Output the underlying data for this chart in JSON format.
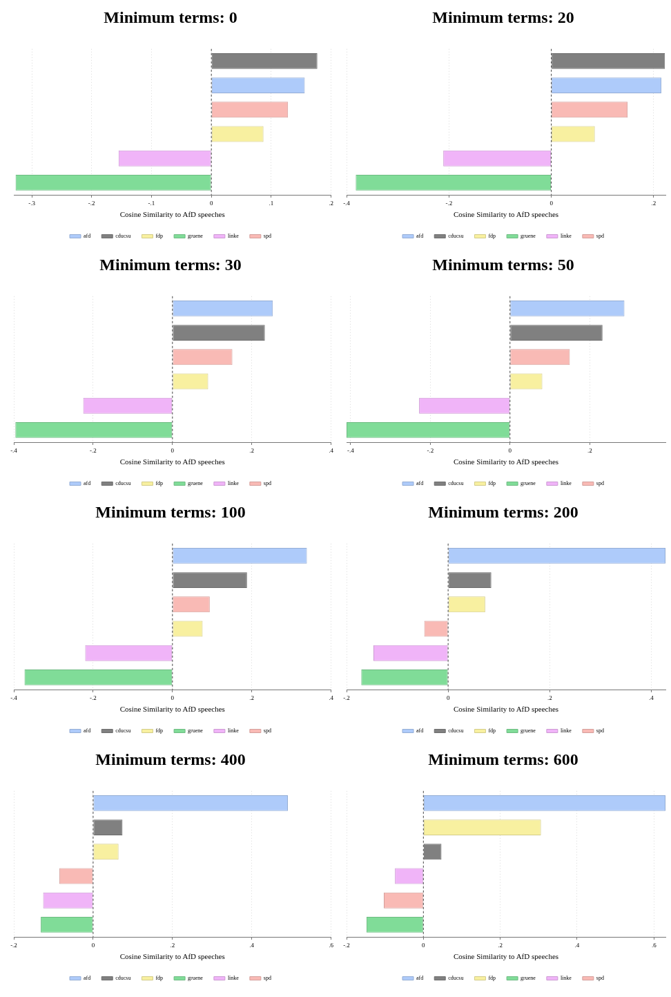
{
  "chart_data": [
    {
      "type": "bar",
      "title": "Minimum terms: 0",
      "xlabel": "Cosine Similarity to AfD speeches",
      "orientation": "horizontal",
      "stacked": true,
      "categories": [
        null,
        null,
        null,
        null,
        null,
        null
      ],
      "xlim": [
        -0.33,
        0.2
      ],
      "xticks": [
        {
          "value": -0.3,
          "label": "-.3"
        },
        {
          "value": -0.2,
          "label": "-.2"
        },
        {
          "value": -0.1,
          "label": "-.1"
        },
        {
          "value": 0,
          "label": "0"
        },
        {
          "value": 0.1,
          "label": ".1"
        },
        {
          "value": 0.2,
          "label": ".2"
        }
      ],
      "grid": "x",
      "legend": "bottom",
      "tick_labels": "x",
      "ref_lines": [
        {
          "axis": "x",
          "value": 0,
          "line_style": "dashed"
        }
      ],
      "series": [
        {
          "name": "afd",
          "color": "#aecbfa",
          "values": [
            null,
            0.156,
            null,
            null,
            null,
            null
          ]
        },
        {
          "name": "cducsu",
          "color": "#808080",
          "values": [
            0.177,
            null,
            null,
            null,
            null,
            null
          ]
        },
        {
          "name": "fdp",
          "color": "#f8f0a0",
          "values": [
            null,
            null,
            null,
            0.087,
            null,
            null
          ]
        },
        {
          "name": "gruene",
          "color": "#80dc98",
          "values": [
            null,
            null,
            null,
            null,
            null,
            -0.327
          ]
        },
        {
          "name": "linke",
          "color": "#f0b4f8",
          "values": [
            null,
            null,
            null,
            null,
            -0.155,
            null
          ]
        },
        {
          "name": "spd",
          "color": "#f9bab5",
          "values": [
            null,
            null,
            0.128,
            null,
            null,
            null
          ]
        }
      ]
    },
    {
      "type": "bar",
      "title": "Minimum terms: 20",
      "xlabel": "Cosine Similarity to AfD speeches",
      "orientation": "horizontal",
      "stacked": true,
      "categories": [
        null,
        null,
        null,
        null,
        null,
        null
      ],
      "xlim": [
        -0.4,
        0.223
      ],
      "xticks": [
        {
          "value": -0.4,
          "label": "-.4"
        },
        {
          "value": -0.2,
          "label": "-.2"
        },
        {
          "value": 0,
          "label": "0"
        },
        {
          "value": 0.2,
          "label": ".2"
        }
      ],
      "grid": "x",
      "legend": "bottom",
      "tick_labels": "x",
      "ref_lines": [
        {
          "axis": "x",
          "value": 0,
          "line_style": "dashed"
        }
      ],
      "series": [
        {
          "name": "afd",
          "color": "#aecbfa",
          "values": [
            null,
            0.215,
            null,
            null,
            null,
            null
          ]
        },
        {
          "name": "cducsu",
          "color": "#808080",
          "values": [
            0.222,
            null,
            null,
            null,
            null,
            null
          ]
        },
        {
          "name": "fdp",
          "color": "#f8f0a0",
          "values": [
            null,
            null,
            null,
            0.085,
            null,
            null
          ]
        },
        {
          "name": "gruene",
          "color": "#80dc98",
          "values": [
            null,
            null,
            null,
            null,
            null,
            -0.382
          ]
        },
        {
          "name": "linke",
          "color": "#f0b4f8",
          "values": [
            null,
            null,
            null,
            null,
            -0.211,
            null
          ]
        },
        {
          "name": "spd",
          "color": "#f9bab5",
          "values": [
            null,
            null,
            0.149,
            null,
            null,
            null
          ]
        }
      ]
    },
    {
      "type": "bar",
      "title": "Minimum terms: 30",
      "xlabel": "Cosine Similarity to AfD speeches",
      "orientation": "horizontal",
      "stacked": true,
      "categories": [
        null,
        null,
        null,
        null,
        null,
        null
      ],
      "xlim": [
        -0.4,
        0.4
      ],
      "xticks": [
        {
          "value": -0.4,
          "label": "-.4"
        },
        {
          "value": -0.2,
          "label": "-.2"
        },
        {
          "value": 0,
          "label": "0"
        },
        {
          "value": 0.2,
          "label": ".2"
        },
        {
          "value": 0.4,
          "label": ".4"
        }
      ],
      "grid": "x",
      "legend": "bottom",
      "tick_labels": "x",
      "ref_lines": [
        {
          "axis": "x",
          "value": 0,
          "line_style": "dashed"
        }
      ],
      "series": [
        {
          "name": "afd",
          "color": "#aecbfa",
          "values": [
            0.253,
            null,
            null,
            null,
            null,
            null
          ]
        },
        {
          "name": "cducsu",
          "color": "#808080",
          "values": [
            null,
            0.233,
            null,
            null,
            null,
            null
          ]
        },
        {
          "name": "fdp",
          "color": "#f8f0a0",
          "values": [
            null,
            null,
            null,
            0.09,
            null,
            null
          ]
        },
        {
          "name": "gruene",
          "color": "#80dc98",
          "values": [
            null,
            null,
            null,
            null,
            null,
            -0.396
          ]
        },
        {
          "name": "linke",
          "color": "#f0b4f8",
          "values": [
            null,
            null,
            null,
            null,
            -0.225,
            null
          ]
        },
        {
          "name": "spd",
          "color": "#f9bab5",
          "values": [
            null,
            null,
            0.151,
            null,
            null,
            null
          ]
        }
      ]
    },
    {
      "type": "bar",
      "title": "Minimum terms: 50",
      "xlabel": "Cosine Similarity to AfD speeches",
      "orientation": "horizontal",
      "stacked": true,
      "categories": [
        null,
        null,
        null,
        null,
        null,
        null
      ],
      "xlim": [
        -0.41,
        0.39
      ],
      "xticks": [
        {
          "value": -0.4,
          "label": "-.4"
        },
        {
          "value": -0.2,
          "label": "-.2"
        },
        {
          "value": 0,
          "label": "0"
        },
        {
          "value": 0.2,
          "label": ".2"
        }
      ],
      "grid": "x",
      "legend": "bottom",
      "tick_labels": "x",
      "ref_lines": [
        {
          "axis": "x",
          "value": 0,
          "line_style": "dashed"
        }
      ],
      "series": [
        {
          "name": "afd",
          "color": "#aecbfa",
          "values": [
            0.287,
            null,
            null,
            null,
            null,
            null
          ]
        },
        {
          "name": "cducsu",
          "color": "#808080",
          "values": [
            null,
            0.232,
            null,
            null,
            null,
            null
          ]
        },
        {
          "name": "fdp",
          "color": "#f8f0a0",
          "values": [
            null,
            null,
            null,
            0.081,
            null,
            null
          ]
        },
        {
          "name": "gruene",
          "color": "#80dc98",
          "values": [
            null,
            null,
            null,
            null,
            null,
            -0.41
          ]
        },
        {
          "name": "linke",
          "color": "#f0b4f8",
          "values": [
            null,
            null,
            null,
            null,
            -0.228,
            null
          ]
        },
        {
          "name": "spd",
          "color": "#f9bab5",
          "values": [
            null,
            null,
            0.15,
            null,
            null,
            null
          ]
        }
      ]
    },
    {
      "type": "bar",
      "title": "Minimum terms: 100",
      "xlabel": "Cosine Similarity to AfD speeches",
      "orientation": "horizontal",
      "stacked": true,
      "categories": [
        null,
        null,
        null,
        null,
        null,
        null
      ],
      "xlim": [
        -0.4,
        0.4
      ],
      "xticks": [
        {
          "value": -0.4,
          "label": "-.4"
        },
        {
          "value": -0.2,
          "label": "-.2"
        },
        {
          "value": 0,
          "label": "0"
        },
        {
          "value": 0.2,
          "label": ".2"
        },
        {
          "value": 0.4,
          "label": ".4"
        }
      ],
      "grid": "x",
      "legend": "bottom",
      "tick_labels": "x",
      "ref_lines": [
        {
          "axis": "x",
          "value": 0,
          "line_style": "dashed"
        }
      ],
      "series": [
        {
          "name": "afd",
          "color": "#aecbfa",
          "values": [
            0.339,
            null,
            null,
            null,
            null,
            null
          ]
        },
        {
          "name": "cducsu",
          "color": "#808080",
          "values": [
            null,
            0.188,
            null,
            null,
            null,
            null
          ]
        },
        {
          "name": "fdp",
          "color": "#f8f0a0",
          "values": [
            null,
            null,
            null,
            0.076,
            null,
            null
          ]
        },
        {
          "name": "gruene",
          "color": "#80dc98",
          "values": [
            null,
            null,
            null,
            null,
            null,
            -0.373
          ]
        },
        {
          "name": "linke",
          "color": "#f0b4f8",
          "values": [
            null,
            null,
            null,
            null,
            -0.22,
            null
          ]
        },
        {
          "name": "spd",
          "color": "#f9bab5",
          "values": [
            null,
            null,
            0.094,
            null,
            null,
            null
          ]
        }
      ]
    },
    {
      "type": "bar",
      "title": "Minimum terms: 200",
      "xlabel": "Cosine Similarity to AfD speeches",
      "orientation": "horizontal",
      "stacked": true,
      "categories": [
        null,
        null,
        null,
        null,
        null,
        null
      ],
      "xlim": [
        -0.2,
        0.428
      ],
      "xticks": [
        {
          "value": -0.2,
          "label": "-.2"
        },
        {
          "value": 0,
          "label": "0"
        },
        {
          "value": 0.2,
          "label": ".2"
        },
        {
          "value": 0.4,
          "label": ".4"
        }
      ],
      "grid": "x",
      "legend": "bottom",
      "tick_labels": "x",
      "ref_lines": [
        {
          "axis": "x",
          "value": 0,
          "line_style": "dashed"
        }
      ],
      "series": [
        {
          "name": "afd",
          "color": "#aecbfa",
          "values": [
            0.428,
            null,
            null,
            null,
            null,
            null
          ]
        },
        {
          "name": "cducsu",
          "color": "#808080",
          "values": [
            null,
            0.085,
            null,
            null,
            null,
            null
          ]
        },
        {
          "name": "fdp",
          "color": "#f8f0a0",
          "values": [
            null,
            null,
            0.073,
            null,
            null,
            null
          ]
        },
        {
          "name": "gruene",
          "color": "#80dc98",
          "values": [
            null,
            null,
            null,
            null,
            null,
            -0.171
          ]
        },
        {
          "name": "linke",
          "color": "#f0b4f8",
          "values": [
            null,
            null,
            null,
            null,
            -0.147,
            null
          ]
        },
        {
          "name": "spd",
          "color": "#f9bab5",
          "values": [
            null,
            null,
            null,
            -0.047,
            null,
            null
          ]
        }
      ]
    },
    {
      "type": "bar",
      "title": "Minimum terms: 400",
      "xlabel": "Cosine Similarity to AfD speeches",
      "orientation": "horizontal",
      "stacked": true,
      "categories": [
        null,
        null,
        null,
        null,
        null,
        null
      ],
      "xlim": [
        -0.2,
        0.6
      ],
      "xticks": [
        {
          "value": -0.2,
          "label": "-.2"
        },
        {
          "value": 0,
          "label": "0"
        },
        {
          "value": 0.2,
          "label": ".2"
        },
        {
          "value": 0.4,
          "label": ".4"
        },
        {
          "value": 0.6,
          "label": ".6"
        }
      ],
      "grid": "x",
      "legend": "bottom",
      "tick_labels": "x",
      "ref_lines": [
        {
          "axis": "x",
          "value": 0,
          "line_style": "dashed"
        }
      ],
      "series": [
        {
          "name": "afd",
          "color": "#aecbfa",
          "values": [
            0.491,
            null,
            null,
            null,
            null,
            null
          ]
        },
        {
          "name": "cducsu",
          "color": "#808080",
          "values": [
            null,
            0.074,
            null,
            null,
            null,
            null
          ]
        },
        {
          "name": "fdp",
          "color": "#f8f0a0",
          "values": [
            null,
            null,
            0.064,
            null,
            null,
            null
          ]
        },
        {
          "name": "gruene",
          "color": "#80dc98",
          "values": [
            null,
            null,
            null,
            null,
            null,
            -0.132
          ]
        },
        {
          "name": "linke",
          "color": "#f0b4f8",
          "values": [
            null,
            null,
            null,
            null,
            -0.126,
            null
          ]
        },
        {
          "name": "spd",
          "color": "#f9bab5",
          "values": [
            null,
            null,
            null,
            -0.085,
            null,
            null
          ]
        }
      ]
    },
    {
      "type": "bar",
      "title": "Minimum terms: 600",
      "xlabel": "Cosine Similarity to AfD speeches",
      "orientation": "horizontal",
      "stacked": true,
      "categories": [
        null,
        null,
        null,
        null,
        null,
        null
      ],
      "xlim": [
        -0.2,
        0.63
      ],
      "xticks": [
        {
          "value": -0.2,
          "label": "-.2"
        },
        {
          "value": 0,
          "label": "0"
        },
        {
          "value": 0.2,
          "label": ".2"
        },
        {
          "value": 0.4,
          "label": ".4"
        },
        {
          "value": 0.6,
          "label": ".6"
        }
      ],
      "grid": "x",
      "legend": "bottom",
      "tick_labels": "x",
      "ref_lines": [
        {
          "axis": "x",
          "value": 0,
          "line_style": "dashed"
        }
      ],
      "series": [
        {
          "name": "afd",
          "color": "#aecbfa",
          "values": [
            0.63,
            null,
            null,
            null,
            null,
            null
          ]
        },
        {
          "name": "cducsu",
          "color": "#808080",
          "values": [
            null,
            null,
            0.047,
            null,
            null,
            null
          ]
        },
        {
          "name": "fdp",
          "color": "#f8f0a0",
          "values": [
            null,
            0.306,
            null,
            null,
            null,
            null
          ]
        },
        {
          "name": "gruene",
          "color": "#80dc98",
          "values": [
            null,
            null,
            null,
            null,
            null,
            -0.148
          ]
        },
        {
          "name": "linke",
          "color": "#f0b4f8",
          "values": [
            null,
            null,
            null,
            -0.074,
            null,
            null
          ]
        },
        {
          "name": "spd",
          "color": "#f9bab5",
          "values": [
            null,
            null,
            null,
            null,
            -0.103,
            null
          ]
        }
      ]
    }
  ]
}
